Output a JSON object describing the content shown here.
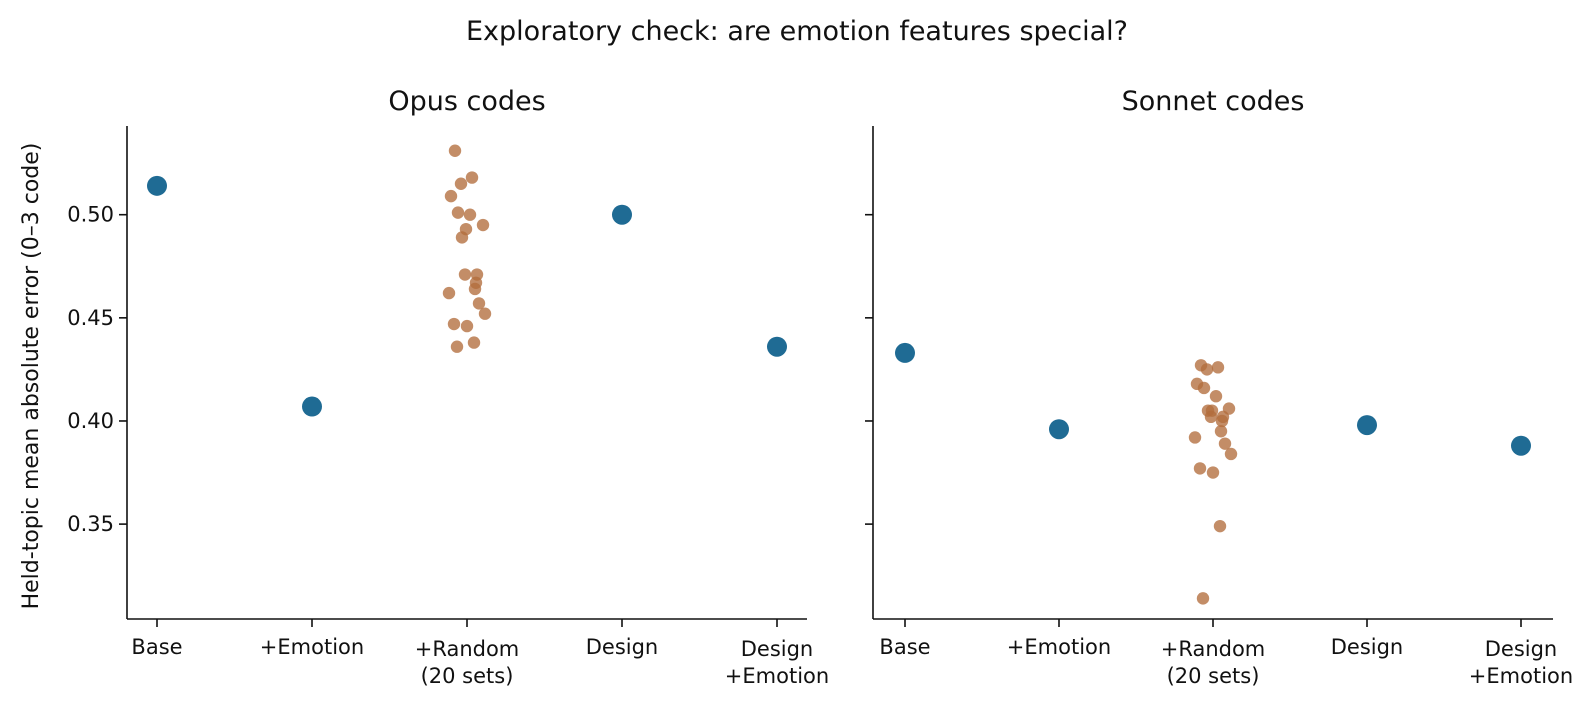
{
  "figure": {
    "title": "Exploratory check: are emotion features special?",
    "ylabel": "Held-topic mean absolute error (0–3 code)"
  },
  "chart_data": {
    "type": "scatter",
    "sharey": true,
    "ylim": [
      0.304,
      0.543
    ],
    "yticks": [
      0.35,
      0.4,
      0.45,
      0.5
    ],
    "ytick_labels": [
      "0.35",
      "0.40",
      "0.45",
      "0.50"
    ],
    "categories": [
      "Base",
      "+Emotion",
      "+Random\n(20 sets)",
      "Design",
      "Design\n+Emotion"
    ],
    "colors": {
      "highlight": "#1f6b94",
      "random": "#b26d3c"
    },
    "grid": false,
    "panels": [
      {
        "title": "Opus codes",
        "points": [
          {
            "category": "Base",
            "value": 0.514
          },
          {
            "category": "+Emotion",
            "value": 0.407
          },
          {
            "category": "Design",
            "value": 0.5
          },
          {
            "category": "Design\n+Emotion",
            "value": 0.436
          }
        ],
        "random_sets": [
          0.531,
          0.518,
          0.515,
          0.509,
          0.501,
          0.5,
          0.495,
          0.493,
          0.489,
          0.471,
          0.471,
          0.467,
          0.464,
          0.462,
          0.457,
          0.452,
          0.447,
          0.446,
          0.438,
          0.436
        ]
      },
      {
        "title": "Sonnet codes",
        "points": [
          {
            "category": "Base",
            "value": 0.433
          },
          {
            "category": "+Emotion",
            "value": 0.396
          },
          {
            "category": "Design",
            "value": 0.398
          },
          {
            "category": "Design\n+Emotion",
            "value": 0.388
          }
        ],
        "random_sets": [
          0.427,
          0.426,
          0.425,
          0.418,
          0.416,
          0.412,
          0.406,
          0.405,
          0.405,
          0.402,
          0.402,
          0.4,
          0.395,
          0.392,
          0.389,
          0.384,
          0.377,
          0.375,
          0.349,
          0.314
        ]
      }
    ]
  }
}
